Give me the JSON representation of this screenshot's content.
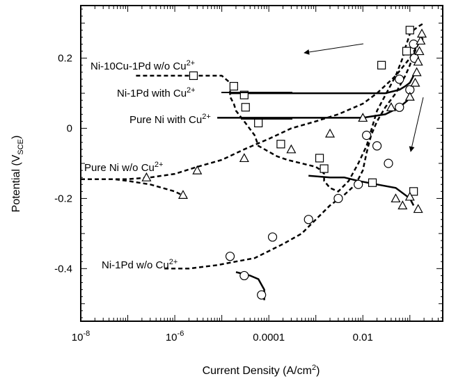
{
  "chart_data": {
    "type": "line",
    "xlabel": "Current Density (A/cm²)",
    "xlabel_main": "Current Density (A/cm",
    "xlabel_sup": "2",
    "xlabel_end": ")",
    "ylabel": "Potential (V_SCE)",
    "ylabel_main": "Potential (V",
    "ylabel_sub": "SCE",
    "ylabel_end": ")",
    "x_scale": "log",
    "xlim": [
      1e-08,
      0.5
    ],
    "ylim": [
      -0.55,
      0.35
    ],
    "x_ticks": [
      {
        "value": 1e-08,
        "base": "10",
        "exp": "-8"
      },
      {
        "value": 1e-06,
        "base": "10",
        "exp": "-6"
      },
      {
        "value": 0.0001,
        "label": "0.0001"
      },
      {
        "value": 0.01,
        "label": "0.01"
      }
    ],
    "y_ticks": [
      {
        "value": 0.2,
        "label": "0.2"
      },
      {
        "value": 0,
        "label": "0"
      },
      {
        "value": -0.2,
        "label": "-0.2"
      },
      {
        "value": -0.4,
        "label": "-0.4"
      }
    ],
    "series": [
      {
        "marker": "square",
        "dash": true,
        "x": [
          1.5e-07,
          1e-06,
          2e-06,
          5e-06,
          1e-05,
          1.5e-05,
          2e-05,
          1.5e-05,
          1.5e-05,
          1.8e-05,
          2e-05,
          3e-05,
          5e-05,
          6e-05,
          0.00015,
          0.00025,
          0.0005,
          0.001,
          0.0013,
          0.0015,
          0.0015,
          0.002,
          0.003,
          0.005,
          0.008,
          0.012,
          0.02,
          0.05,
          0.07,
          0.08,
          0.09,
          0.1,
          0.12,
          0.15,
          0.2
        ],
        "y": [
          0.15,
          0.15,
          0.15,
          0.15,
          0.15,
          0.13,
          0.12,
          0.11,
          0.09,
          0.07,
          0.05,
          0.02,
          -0.02,
          -0.05,
          -0.08,
          -0.09,
          -0.1,
          -0.11,
          -0.12,
          -0.13,
          -0.15,
          -0.17,
          -0.18,
          -0.15,
          -0.1,
          -0.05,
          0.05,
          0.15,
          0.2,
          0.23,
          0.25,
          0.27,
          0.28,
          0.29,
          0.3
        ],
        "markers_x": [
          2.5e-06,
          1.8e-05,
          3e-05,
          3.2e-05,
          6e-05,
          0.00018,
          0.0012,
          0.0015,
          0.016,
          0.025,
          0.12,
          0.085,
          0.1
        ],
        "markers_y": [
          0.15,
          0.12,
          0.095,
          0.06,
          0.015,
          -0.045,
          -0.085,
          -0.115,
          -0.155,
          0.18,
          -0.18,
          0.22,
          0.28
        ]
      },
      {
        "marker": "circle",
        "dash": true,
        "x": [
          6e-07,
          2e-06,
          8e-06,
          2e-05,
          5e-05,
          0.0001,
          0.0002,
          0.0005,
          0.001,
          0.002,
          0.004,
          0.007,
          0.01,
          0.012,
          0.015,
          0.02,
          0.03,
          0.05,
          0.08,
          0.1,
          0.12,
          0.15,
          0.2
        ],
        "y": [
          -0.4,
          -0.4,
          -0.39,
          -0.38,
          -0.37,
          -0.35,
          -0.33,
          -0.3,
          -0.26,
          -0.22,
          -0.19,
          -0.16,
          -0.12,
          -0.07,
          -0.02,
          0.02,
          0.06,
          0.1,
          0.15,
          0.18,
          0.21,
          0.24,
          0.26
        ],
        "markers_x": [
          1.5e-05,
          0.00012,
          0.0007,
          0.003,
          0.008,
          0.012,
          0.02,
          0.035,
          0.06,
          0.1,
          0.125,
          0.06,
          0.12
        ],
        "markers_y": [
          -0.365,
          -0.31,
          -0.26,
          -0.2,
          -0.16,
          -0.02,
          -0.05,
          -0.1,
          0.06,
          0.11,
          0.2,
          0.14,
          0.24
        ]
      },
      {
        "marker": "triangle",
        "dash": true,
        "x": [
          1e-08,
          5e-08,
          1e-07,
          3e-07,
          1e-06,
          3e-06,
          1e-05,
          3e-05,
          0.0001,
          0.0003,
          0.001,
          0.003,
          0.01,
          0.02,
          0.05,
          0.1,
          0.15,
          0.2
        ],
        "y": [
          -0.145,
          -0.145,
          -0.145,
          -0.14,
          -0.13,
          -0.11,
          -0.09,
          -0.06,
          -0.03,
          0.0,
          0.02,
          0.04,
          0.07,
          0.1,
          0.15,
          0.2,
          0.24,
          0.27
        ],
        "markers_x": [
          2.5e-07,
          3e-06,
          3e-05,
          0.0003,
          0.002,
          0.01,
          0.04,
          0.1,
          0.13,
          0.14,
          0.15,
          0.16,
          0.17,
          0.18
        ],
        "markers_y": [
          -0.14,
          -0.12,
          -0.085,
          -0.06,
          -0.015,
          0.03,
          0.06,
          0.09,
          0.13,
          0.16,
          0.19,
          0.22,
          0.25,
          0.27
        ]
      },
      {
        "marker": "triangle",
        "dash": true,
        "x": [
          1e-08,
          5e-08,
          1e-07,
          3e-07,
          1e-06,
          2e-06
        ],
        "y": [
          -0.145,
          -0.145,
          -0.15,
          -0.16,
          -0.18,
          -0.2
        ],
        "markers_x": [
          1.5e-06
        ],
        "markers_y": [
          -0.19
        ]
      },
      {
        "marker": "none",
        "dash": false,
        "x": [
          1.5e-05,
          0.0001,
          0.001,
          0.01,
          0.03,
          0.06,
          0.08,
          0.1,
          0.12
        ],
        "y": [
          0.1,
          0.1,
          0.1,
          0.1,
          0.1,
          0.11,
          0.12,
          0.13,
          0.15
        ]
      },
      {
        "marker": "none",
        "dash": false,
        "x": [
          8e-06,
          0.0001,
          0.001,
          0.01,
          0.03,
          0.06,
          0.09
        ],
        "y": [
          0.03,
          0.03,
          0.03,
          0.03,
          0.04,
          0.06,
          0.08
        ]
      },
      {
        "marker": "none",
        "dash": false,
        "x": [
          0.0007,
          0.002,
          0.004,
          0.008,
          0.02,
          0.05,
          0.1,
          0.12
        ],
        "y": [
          -0.135,
          -0.14,
          -0.14,
          -0.15,
          -0.16,
          -0.17,
          -0.2,
          -0.22
        ],
        "markers_x": [
          0.05,
          0.07,
          0.1,
          0.15
        ],
        "markers_y": [
          -0.2,
          -0.22,
          -0.195,
          -0.23
        ]
      },
      {
        "marker": "circle",
        "dash": false,
        "x": [
          2e-05,
          4e-05,
          6e-05,
          8e-05,
          8e-05
        ],
        "y": [
          -0.41,
          -0.42,
          -0.43,
          -0.46,
          -0.49
        ],
        "markers_x": [
          3e-05,
          7e-05
        ],
        "markers_y": [
          -0.42,
          -0.475
        ]
      }
    ],
    "annotations": [
      {
        "id": "ni10cu1pd",
        "text": "Ni-10Cu-1Pd w/o Cu",
        "sup": "2+"
      },
      {
        "id": "ni1pd_with",
        "text": "Ni-1Pd with Cu",
        "sup": "2+"
      },
      {
        "id": "pureni_with",
        "text": "Pure Ni with Cu",
        "sup": "2+"
      },
      {
        "id": "pureni_wo",
        "text": "Pure Ni w/o Cu",
        "sup": "2+"
      },
      {
        "id": "ni1pd_wo",
        "text": "Ni-1Pd w/o Cu",
        "sup": "2+"
      }
    ]
  }
}
